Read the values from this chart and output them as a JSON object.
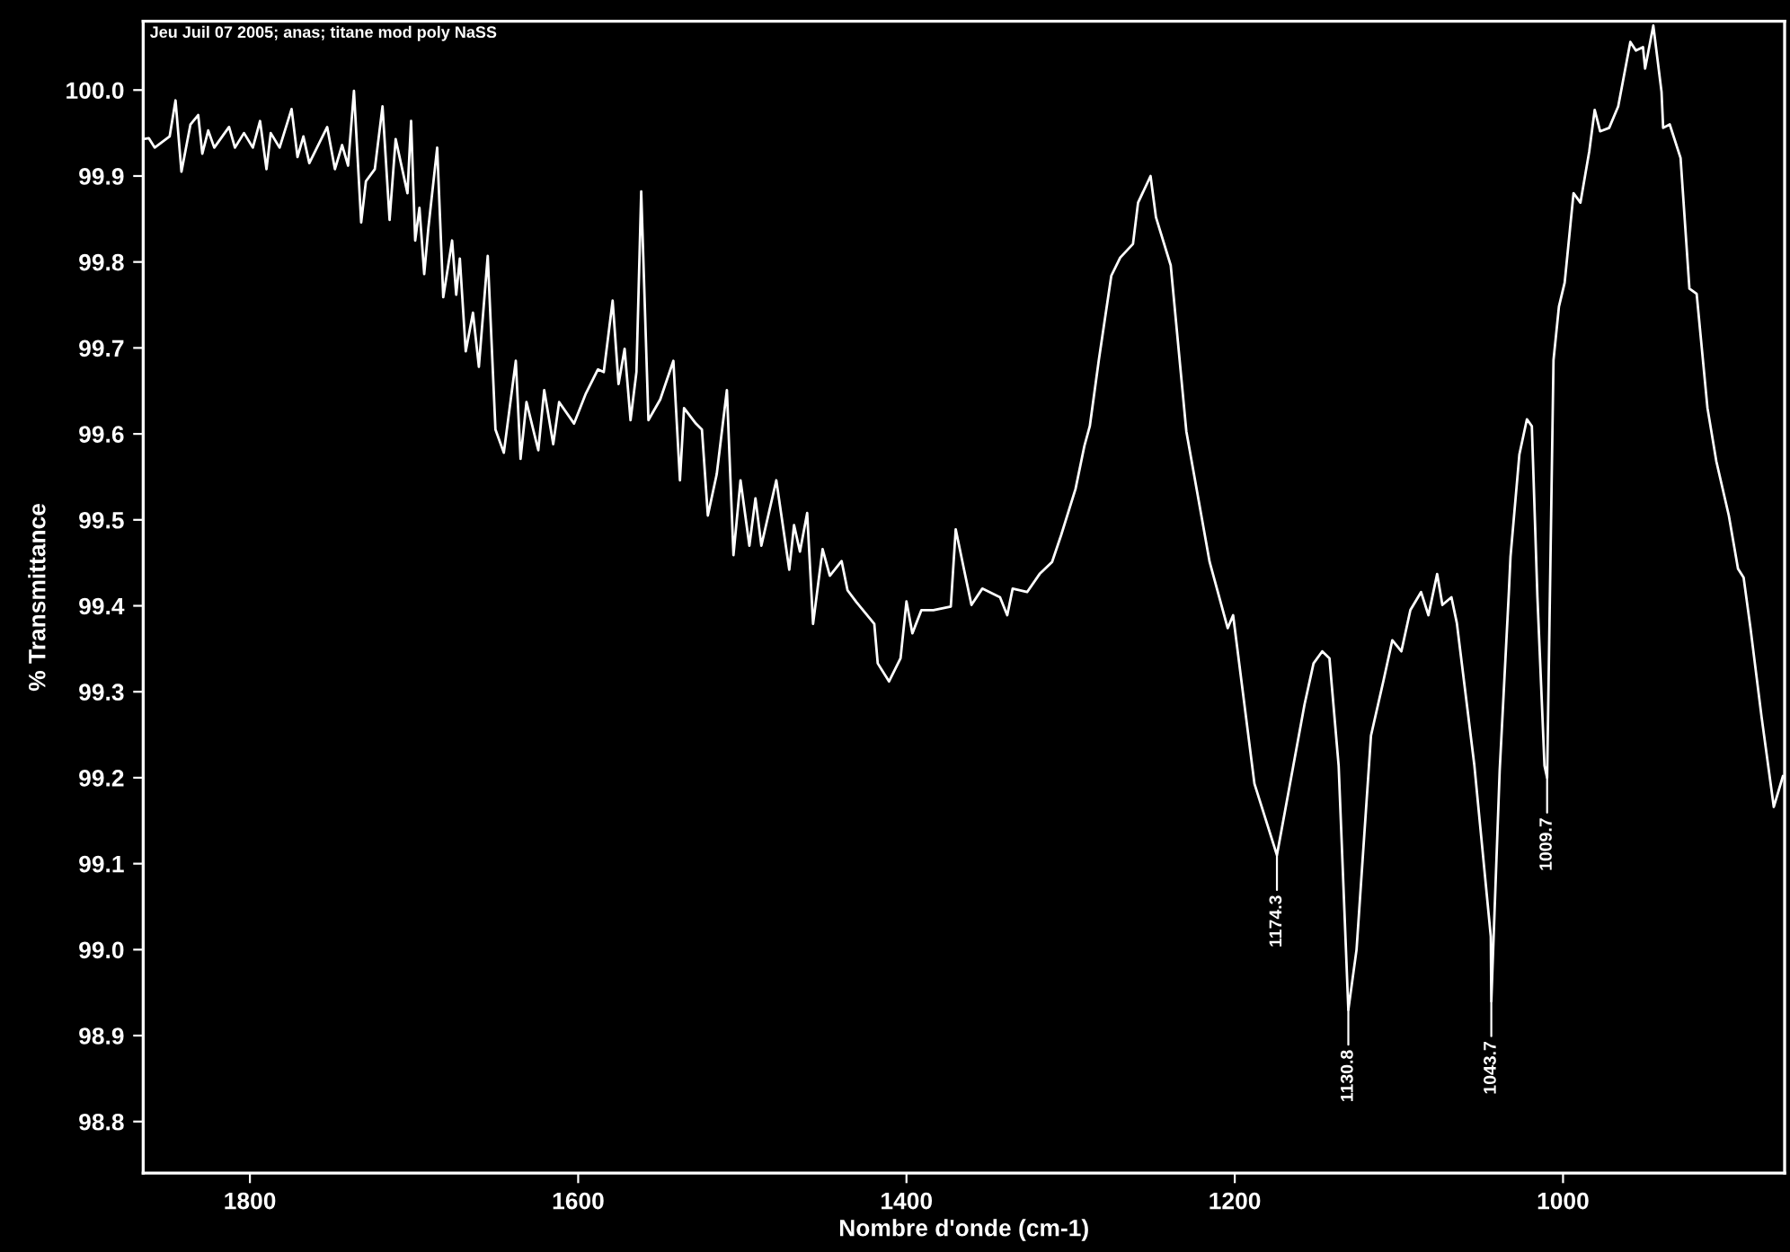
{
  "chart_data": {
    "type": "line",
    "title": "Jeu Juil 07 2005; anas; titane mod poly NaSS",
    "xlabel": "Nombre d'onde (cm-1)",
    "ylabel": "% Transmittance",
    "xlim": [
      1865,
      865
    ],
    "ylim": [
      98.74,
      100.08
    ],
    "xticks": [
      1800,
      1600,
      1400,
      1200,
      1000
    ],
    "yticks": [
      {
        "value": 98.8,
        "label": "98.8"
      },
      {
        "value": 98.9,
        "label": "98.9"
      },
      {
        "value": 99.0,
        "label": "99.0"
      },
      {
        "value": 99.1,
        "label": "99.1"
      },
      {
        "value": 99.2,
        "label": "99.2"
      },
      {
        "value": 99.3,
        "label": "99.3"
      },
      {
        "value": 99.4,
        "label": "99.4"
      },
      {
        "value": 99.5,
        "label": "99.5"
      },
      {
        "value": 99.6,
        "label": "99.6"
      },
      {
        "value": 99.7,
        "label": "99.7"
      },
      {
        "value": 99.8,
        "label": "99.8"
      },
      {
        "value": 99.9,
        "label": "99.9"
      },
      {
        "value": 100.0,
        "label": "100.0"
      }
    ],
    "grid": false,
    "legend": false,
    "marker": "none",
    "line_style": "solid",
    "annotations": [
      {
        "text": "1174.3",
        "x": 1174.3,
        "y": 99.11
      },
      {
        "text": "1130.8",
        "x": 1130.8,
        "y": 98.93
      },
      {
        "text": "1043.7",
        "x": 1043.7,
        "y": 98.94
      },
      {
        "text": "1009.7",
        "x": 1009.7,
        "y": 99.2
      }
    ],
    "series": [
      {
        "color": "#ffffff",
        "x": [
          1865,
          1861.6,
          1858.0,
          1848.9,
          1845.3,
          1841.7,
          1836.2,
          1831.5,
          1829.0,
          1825.4,
          1821.7,
          1812.7,
          1809.1,
          1803.6,
          1798.2,
          1793.8,
          1789.9,
          1787.3,
          1781.9,
          1774.6,
          1771.0,
          1767.4,
          1763.8,
          1752.9,
          1748.2,
          1743.8,
          1740.2,
          1736.6,
          1732.2,
          1729.3,
          1723.9,
          1719.2,
          1714.9,
          1711.2,
          1704.0,
          1701.8,
          1699.3,
          1696.7,
          1693.8,
          1691.3,
          1685.9,
          1682.2,
          1676.8,
          1674.3,
          1672.1,
          1668.5,
          1664.1,
          1660.5,
          1655.1,
          1650.4,
          1645.3,
          1638.0,
          1635.1,
          1631.5,
          1624.3,
          1620.7,
          1615.2,
          1611.6,
          1602.5,
          1595.3,
          1588.0,
          1584.4,
          1579.0,
          1575.4,
          1571.7,
          1568.1,
          1564.5,
          1561.6,
          1557.2,
          1550.0,
          1542.0,
          1538.0,
          1535.5,
          1528.3,
          1524.6,
          1521.0,
          1515.6,
          1509.4,
          1505.4,
          1501.1,
          1495.7,
          1492.0,
          1488.4,
          1479.3,
          1471.4,
          1468.5,
          1464.9,
          1460.5,
          1456.9,
          1451.1,
          1446.7,
          1439.5,
          1435.9,
          1430.4,
          1419.6,
          1417.5,
          1410.6,
          1403.6,
          1400,
          1396.4,
          1390.9,
          1383.6,
          1373,
          1370,
          1364.8,
          1360.4,
          1353.8,
          1343,
          1338.6,
          1335.3,
          1326.5,
          1318.9,
          1311.3,
          1305.8,
          1297,
          1291.6,
          1288.3,
          1282.8,
          1275.2,
          1269.8,
          1262,
          1258.9,
          1251.3,
          1248,
          1239,
          1229.5,
          1215.3,
          1204.3,
          1201,
          1188,
          1174.3,
          1169.5,
          1157.5,
          1152,
          1146.7,
          1142.3,
          1136.7,
          1130.8,
          1125.8,
          1117,
          1109.5,
          1104,
          1098.5,
          1093,
          1086.5,
          1082,
          1076.7,
          1073.5,
          1068,
          1064.7,
          1054,
          1044,
          1043.7,
          1038.6,
          1033,
          1032,
          1026.6,
          1022,
          1019,
          1015.6,
          1011.3,
          1009.7,
          1005.8,
          1002.5,
          999,
          993.6,
          989.4,
          984,
          980.7,
          977.4,
          971.9,
          966.4,
          959,
          955.6,
          951.3,
          950,
          945,
          940,
          939,
          935,
          928.4,
          923,
          918.6,
          912,
          906.6,
          899,
          893.4,
          890,
          885.8,
          879,
          871.6,
          866
        ],
        "values": [
          99.943,
          99.944,
          99.933,
          99.946,
          99.988,
          99.905,
          99.96,
          99.971,
          99.926,
          99.953,
          99.933,
          99.957,
          99.933,
          99.95,
          99.933,
          99.964,
          99.908,
          99.95,
          99.933,
          99.978,
          99.922,
          99.946,
          99.915,
          99.957,
          99.908,
          99.936,
          99.912,
          99.999,
          99.846,
          99.894,
          99.908,
          99.981,
          99.849,
          99.943,
          99.88,
          99.964,
          99.825,
          99.863,
          99.786,
          99.839,
          99.933,
          99.759,
          99.825,
          99.762,
          99.804,
          99.696,
          99.741,
          99.678,
          99.807,
          99.605,
          99.578,
          99.685,
          99.571,
          99.637,
          99.581,
          99.651,
          99.588,
          99.637,
          99.612,
          99.647,
          99.675,
          99.672,
          99.755,
          99.658,
          99.699,
          99.616,
          99.672,
          99.882,
          99.616,
          99.64,
          99.685,
          99.546,
          99.63,
          99.612,
          99.605,
          99.505,
          99.553,
          99.651,
          99.459,
          99.546,
          99.47,
          99.525,
          99.47,
          99.546,
          99.442,
          99.494,
          99.463,
          99.508,
          99.379,
          99.466,
          99.435,
          99.452,
          99.418,
          99.404,
          99.379,
          99.333,
          99.312,
          99.339,
          99.405,
          99.368,
          99.395,
          99.395,
          99.399,
          99.489,
          99.441,
          99.401,
          99.42,
          99.41,
          99.389,
          99.42,
          99.416,
          99.437,
          99.451,
          99.482,
          99.536,
          99.586,
          99.609,
          99.686,
          99.784,
          99.805,
          99.821,
          99.869,
          99.9,
          99.852,
          99.796,
          99.603,
          99.451,
          99.374,
          99.389,
          99.193,
          99.11,
          99.16,
          99.285,
          99.333,
          99.347,
          99.339,
          99.214,
          98.93,
          99.0,
          99.249,
          99.312,
          99.36,
          99.347,
          99.395,
          99.416,
          99.389,
          99.437,
          99.401,
          99.41,
          99.38,
          99.214,
          99.015,
          98.94,
          99.208,
          99.416,
          99.457,
          99.576,
          99.617,
          99.609,
          99.41,
          99.214,
          99.2,
          99.686,
          99.748,
          99.776,
          99.88,
          99.869,
          99.929,
          99.977,
          99.952,
          99.956,
          99.981,
          100.056,
          100.046,
          100.05,
          100.025,
          100.075,
          99.998,
          99.956,
          99.96,
          99.921,
          99.769,
          99.763,
          99.63,
          99.568,
          99.505,
          99.443,
          99.433,
          99.374,
          99.27,
          99.166,
          99.202
        ]
      }
    ]
  }
}
